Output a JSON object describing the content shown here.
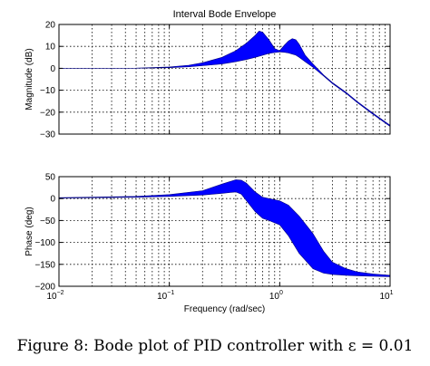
{
  "caption": "Figure 8: Bode plot of PID controller with ε = 0.01",
  "colors": {
    "envelope": "#0000ff",
    "axes": "#000000"
  },
  "chart_data": [
    {
      "type": "area",
      "title": "Interval Bode Envelope",
      "xlabel": "",
      "ylabel": "Magnitude (dB)",
      "xscale": "log",
      "xlim": [
        0.01,
        10
      ],
      "ylim": [
        -30,
        20
      ],
      "yticks": [
        20,
        10,
        0,
        -10,
        -20,
        -30
      ],
      "grid": true,
      "x": [
        0.01,
        0.05,
        0.1,
        0.15,
        0.2,
        0.3,
        0.4,
        0.5,
        0.6,
        0.65,
        0.7,
        0.8,
        0.9,
        1.0,
        1.1,
        1.2,
        1.3,
        1.4,
        1.5,
        1.7,
        2.0,
        2.5,
        3.0,
        4.0,
        5.0,
        7.0,
        10.0
      ],
      "upper": [
        0,
        0.1,
        0.6,
        1.4,
        2.5,
        5,
        8,
        11.5,
        15,
        17,
        16.5,
        13,
        9,
        8,
        10.5,
        12.5,
        13.5,
        13,
        11,
        6,
        2,
        -3,
        -6.5,
        -11,
        -15,
        -20.5,
        -26
      ],
      "lower": [
        0,
        0.05,
        0.3,
        0.7,
        1.2,
        2,
        3,
        4,
        5,
        5.5,
        6,
        6.8,
        7.2,
        7.5,
        7.3,
        7,
        6.5,
        6,
        5,
        3,
        0.5,
        -3.5,
        -7,
        -11.5,
        -15.5,
        -21,
        -26.5
      ]
    },
    {
      "type": "area",
      "title": "",
      "xlabel": "Frequency (rad/sec)",
      "ylabel": "Phase (deg)",
      "xscale": "log",
      "xlim": [
        0.01,
        10
      ],
      "ylim": [
        -200,
        50
      ],
      "yticks": [
        50,
        0,
        -50,
        -100,
        -150,
        -200
      ],
      "xtick_labels": [
        "10-2",
        "10-1",
        "100",
        "101"
      ],
      "grid": true,
      "x": [
        0.01,
        0.05,
        0.1,
        0.2,
        0.3,
        0.4,
        0.45,
        0.5,
        0.6,
        0.7,
        0.8,
        1.0,
        1.2,
        1.5,
        2.0,
        2.5,
        3.0,
        4.0,
        5.0,
        7.0,
        10.0
      ],
      "upper": [
        2,
        5,
        9,
        18,
        33,
        43,
        42,
        35,
        15,
        3,
        0,
        -5,
        -15,
        -40,
        -80,
        -120,
        -145,
        -160,
        -167,
        -172,
        -175
      ],
      "lower": [
        1,
        3,
        5,
        8,
        12,
        15,
        10,
        -5,
        -30,
        -45,
        -50,
        -60,
        -85,
        -125,
        -160,
        -170,
        -173,
        -175,
        -176,
        -177,
        -178
      ]
    }
  ]
}
